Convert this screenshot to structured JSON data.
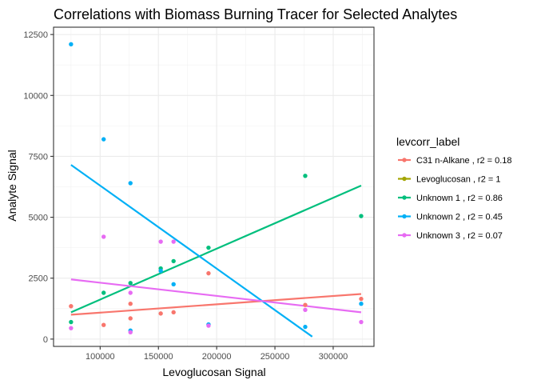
{
  "chart_data": {
    "type": "scatter",
    "title": "Correlations with Biomass Burning Tracer for Selected Analytes",
    "xlabel": "Levoglucosan Signal",
    "ylabel": "Analyte Signal",
    "xlim": [
      60000,
      335000
    ],
    "ylim": [
      -300,
      12800
    ],
    "x_ticks": [
      100000,
      150000,
      200000,
      250000,
      300000
    ],
    "x_tick_labels": [
      "100000",
      "150000",
      "200000",
      "250000",
      "300000"
    ],
    "y_ticks": [
      0,
      2500,
      5000,
      7500,
      10000,
      12500
    ],
    "y_tick_labels": [
      "0",
      "2500",
      "5000",
      "7500",
      "10000",
      "12500"
    ],
    "grid": true,
    "legend": {
      "title": "levcorr_label",
      "position": "right"
    },
    "series": [
      {
        "name": "C31 n-Alkane , r2 = 0.18",
        "color": "#F8766D",
        "points": [
          [
            75000,
            1350
          ],
          [
            103000,
            580
          ],
          [
            126000,
            850
          ],
          [
            126000,
            1450
          ],
          [
            152000,
            1050
          ],
          [
            163000,
            1100
          ],
          [
            193000,
            2700
          ],
          [
            276000,
            1400
          ],
          [
            324000,
            1650
          ]
        ],
        "fit": [
          [
            75000,
            1000
          ],
          [
            324000,
            1850
          ]
        ]
      },
      {
        "name": "Levoglucosan , r2 = 1",
        "color": "#A3A500",
        "points": [],
        "fit": []
      },
      {
        "name": "Unknown 1 , r2 = 0.86",
        "color": "#00BF7D",
        "points": [
          [
            75000,
            700
          ],
          [
            103000,
            1900
          ],
          [
            126000,
            2300
          ],
          [
            152000,
            2900
          ],
          [
            163000,
            3200
          ],
          [
            193000,
            3750
          ],
          [
            276000,
            6700
          ],
          [
            324000,
            5050
          ]
        ],
        "fit": [
          [
            75000,
            1100
          ],
          [
            324000,
            6300
          ]
        ]
      },
      {
        "name": "Unknown 2 , r2 = 0.45",
        "color": "#00B0F6",
        "points": [
          [
            75000,
            12100
          ],
          [
            103000,
            8200
          ],
          [
            126000,
            6400
          ],
          [
            126000,
            350
          ],
          [
            152000,
            2800
          ],
          [
            163000,
            2250
          ],
          [
            193000,
            600
          ],
          [
            276000,
            500
          ],
          [
            324000,
            1450
          ]
        ],
        "fit": [
          [
            75000,
            7150
          ],
          [
            282000,
            100
          ]
        ]
      },
      {
        "name": "Unknown 3 , r2 = 0.07",
        "color": "#E76BF3",
        "points": [
          [
            75000,
            450
          ],
          [
            103000,
            4200
          ],
          [
            126000,
            1900
          ],
          [
            126000,
            280
          ],
          [
            152000,
            4000
          ],
          [
            163000,
            4000
          ],
          [
            193000,
            550
          ],
          [
            276000,
            1200
          ],
          [
            324000,
            700
          ]
        ],
        "fit": [
          [
            75000,
            2450
          ],
          [
            324000,
            1100
          ]
        ]
      }
    ]
  }
}
